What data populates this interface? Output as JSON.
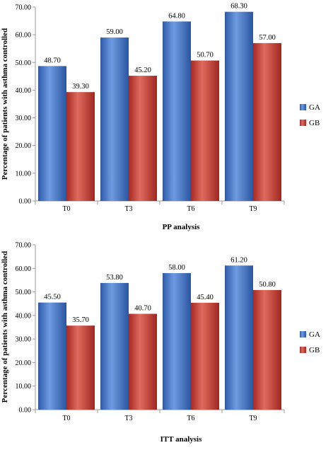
{
  "colors": {
    "GA": "#4472c4",
    "GB": "#c0392b",
    "axis": "#999999"
  },
  "chart_data": [
    {
      "type": "bar",
      "title": "PP analysis",
      "xlabel": "",
      "ylabel": "Percentage of patients with asthma controlled",
      "categories": [
        "T0",
        "T3",
        "T6",
        "T9"
      ],
      "series": [
        {
          "name": "GA",
          "values": [
            48.7,
            59.0,
            64.8,
            68.3
          ],
          "labels": [
            "48.70",
            "59.00",
            "64.80",
            "68.30"
          ]
        },
        {
          "name": "GB",
          "values": [
            39.3,
            45.2,
            50.7,
            57.0
          ],
          "labels": [
            "39.30",
            "45.20",
            "50.70",
            "57.00"
          ]
        }
      ],
      "ylim": [
        0,
        70
      ],
      "ytick_labels": [
        "0.00",
        "10.00",
        "20.00",
        "30.00",
        "40.00",
        "50.00",
        "60.00",
        "70.00"
      ],
      "legend": "right",
      "grid": false
    },
    {
      "type": "bar",
      "title": "ITT analysis",
      "xlabel": "",
      "ylabel": "Percentage of patients with asthma controlled",
      "categories": [
        "T0",
        "T3",
        "T6",
        "T9"
      ],
      "series": [
        {
          "name": "GA",
          "values": [
            45.5,
            53.8,
            58.0,
            61.2
          ],
          "labels": [
            "45.50",
            "53.80",
            "58.00",
            "61.20"
          ]
        },
        {
          "name": "GB",
          "values": [
            35.7,
            40.7,
            45.4,
            50.8
          ],
          "labels": [
            "35.70",
            "40.70",
            "45.40",
            "50.80"
          ]
        }
      ],
      "ylim": [
        0,
        70
      ],
      "ytick_labels": [
        "0.00",
        "10.00",
        "20.00",
        "30.00",
        "40.00",
        "50.00",
        "60.00",
        "70.00"
      ],
      "legend": "right",
      "grid": false
    }
  ]
}
